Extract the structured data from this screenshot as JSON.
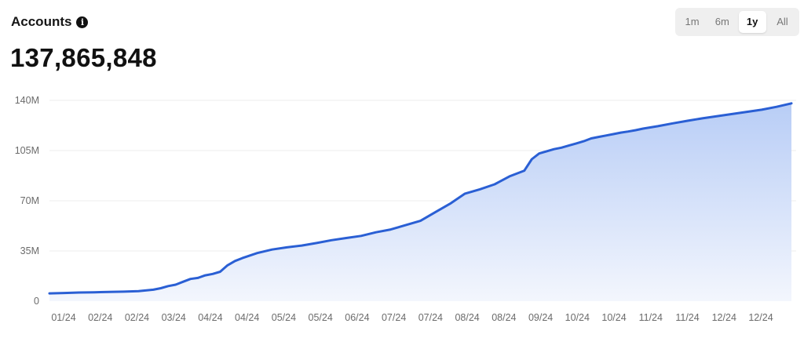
{
  "header": {
    "title": "Accounts",
    "info_icon": "info-icon"
  },
  "metric": {
    "value": "137,865,848"
  },
  "range_tabs": [
    {
      "label": "1m",
      "active": false
    },
    {
      "label": "6m",
      "active": false
    },
    {
      "label": "1y",
      "active": true
    },
    {
      "label": "All",
      "active": false
    }
  ],
  "colors": {
    "line": "#2a5fd4",
    "fill_top": "#b8cdf6",
    "fill_bottom": "#f3f6fd",
    "grid": "#ececec"
  },
  "chart_data": {
    "type": "area",
    "title": "",
    "xlabel": "",
    "ylabel": "",
    "ylim": [
      0,
      140000000
    ],
    "y_ticks": [
      {
        "value": 0,
        "label": "0"
      },
      {
        "value": 35000000,
        "label": "35M"
      },
      {
        "value": 70000000,
        "label": "70M"
      },
      {
        "value": 105000000,
        "label": "105M"
      },
      {
        "value": 140000000,
        "label": "140M"
      }
    ],
    "x_tick_labels": [
      "01/24",
      "02/24",
      "02/24",
      "03/24",
      "04/24",
      "04/24",
      "05/24",
      "05/24",
      "06/24",
      "07/24",
      "07/24",
      "08/24",
      "08/24",
      "09/24",
      "10/24",
      "10/24",
      "11/24",
      "11/24",
      "12/24",
      "12/24"
    ],
    "grid": true,
    "x": [
      0,
      2,
      4,
      6,
      8,
      10,
      12,
      14,
      15,
      16,
      17,
      18,
      19,
      20,
      21,
      22,
      23,
      24,
      25,
      26,
      28,
      30,
      32,
      34,
      36,
      38,
      40,
      42,
      44,
      46,
      48,
      50,
      52,
      54,
      56,
      58,
      60,
      62,
      64,
      65,
      66,
      67,
      68,
      69,
      70,
      71,
      72,
      73,
      74,
      75,
      76,
      77,
      78,
      79,
      80,
      82,
      84,
      86,
      88,
      90,
      92,
      94,
      96,
      98,
      100
    ],
    "y": [
      5.4,
      5.7,
      6.0,
      6.2,
      6.4,
      6.6,
      7.0,
      8.0,
      9.0,
      10.5,
      11.5,
      13.5,
      15.5,
      16.2,
      18.0,
      19.0,
      20.5,
      25.0,
      28.0,
      30.0,
      33.5,
      36.0,
      37.5,
      38.8,
      40.5,
      42.5,
      44.0,
      45.5,
      48.0,
      50.0,
      53.0,
      56.0,
      62.0,
      68.0,
      75.0,
      78.0,
      81.5,
      87.0,
      91.0,
      99.0,
      103.0,
      104.5,
      106.0,
      107.0,
      108.5,
      110.0,
      111.5,
      113.5,
      114.5,
      115.5,
      116.5,
      117.5,
      118.3,
      119.2,
      120.3,
      122.0,
      124.0,
      125.8,
      127.5,
      129.0,
      130.5,
      132.0,
      133.5,
      135.5,
      137.9
    ],
    "series": [
      {
        "values": "y"
      }
    ]
  }
}
